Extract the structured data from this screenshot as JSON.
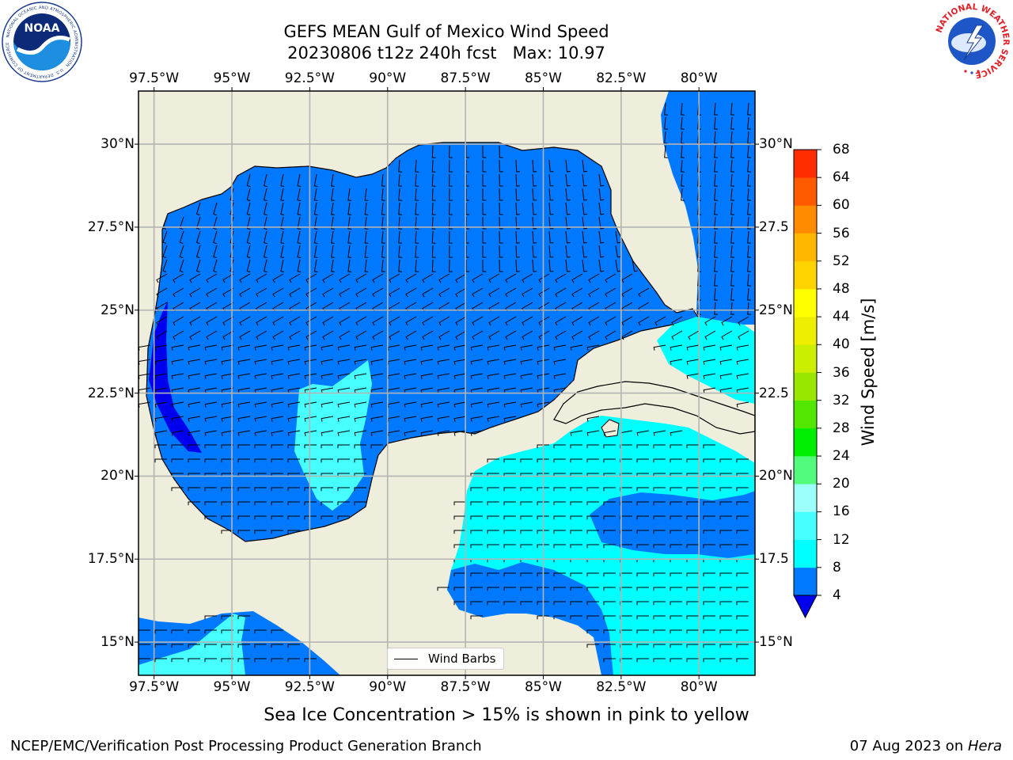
{
  "header": {
    "title_line1": "GEFS MEAN Gulf of Mexico Wind Speed",
    "title_line2": "20230806 t12z 240h fcst   Max: 10.97"
  },
  "logos": [
    {
      "name": "noaa-logo",
      "text": "NOAA",
      "ring_text": "NATIONAL OCEANIC AND ATMOSPHERIC ADMINISTRATION · U.S. DEPARTMENT OF COMMERCE"
    },
    {
      "name": "nws-logo",
      "ring_text": "NATIONAL WEATHER SERVICE"
    }
  ],
  "map": {
    "lon_ticks": [
      "97.5°W",
      "95°W",
      "92.5°W",
      "90°W",
      "87.5°W",
      "85°W",
      "82.5°W",
      "80°W"
    ],
    "lon_values": [
      -97.5,
      -95,
      -92.5,
      -90,
      -87.5,
      -85,
      -82.5,
      -80
    ],
    "lat_ticks_left": [
      "30°N",
      "27.5°N",
      "25°N",
      "22.5°N",
      "20°N",
      "17.5°N",
      "15°N"
    ],
    "lat_ticks_right": [
      "30°N",
      "27.5",
      "25°N",
      "22.5",
      "20°N",
      "17.5",
      "15°N"
    ],
    "lat_values": [
      30,
      27.5,
      25,
      22.5,
      20,
      17.5,
      15
    ],
    "extent": {
      "lon_min": -98,
      "lon_max": -78.2,
      "lat_min": 14,
      "lat_max": 31.6
    },
    "land_color": "#efeddc",
    "grid_color": "#b4b4b4",
    "legend_label": "Wind Barbs"
  },
  "colorbar": {
    "title": "Wind Speed [m/s]",
    "levels": [
      4,
      8,
      12,
      16,
      20,
      24,
      28,
      32,
      36,
      40,
      44,
      48,
      52,
      56,
      60,
      64,
      68
    ],
    "labels": [
      "4",
      "8",
      "12",
      "16",
      "20",
      "24",
      "28",
      "32",
      "36",
      "40",
      "44",
      "48",
      "52",
      "56",
      "60",
      "64",
      "68"
    ],
    "colors": [
      "#0079ff",
      "#00ffff",
      "#48ffff",
      "#9dfff9",
      "#52fb7c",
      "#00ee00",
      "#52e600",
      "#99e600",
      "#ccee00",
      "#eeee00",
      "#ffff00",
      "#ffd300",
      "#ffb700",
      "#ff8c00",
      "#ff5a00",
      "#ff2d00"
    ],
    "under_color": "#0000ee"
  },
  "subtitle": "Sea Ice Concentration > 15% is shown in pink to yellow",
  "footer": {
    "left": "NCEP/EMC/Verification Post Processing Product Generation Branch",
    "right_prefix": "07 Aug 2023 on ",
    "right_machine": "Hera"
  }
}
